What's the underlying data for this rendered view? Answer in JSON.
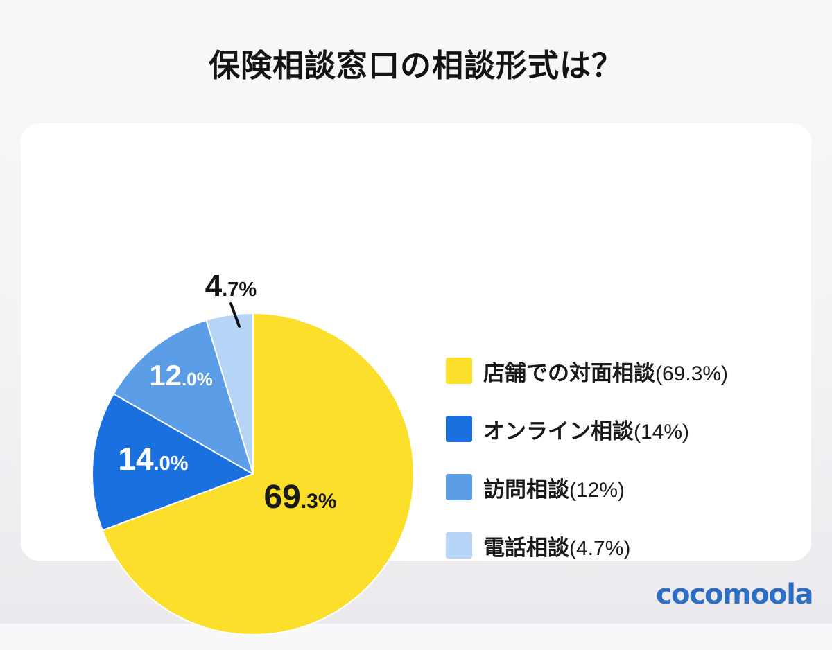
{
  "title": "保険相談窓口の相談形式は？",
  "logo_text": "cocomoola",
  "colors": {
    "background_top": "#f8f7f9",
    "background_bottom": "#eceaee",
    "card": "#ffffff",
    "title_text": "#141414",
    "logo_blue": "#2d6fc4",
    "slice_separator": "#ffffff"
  },
  "chart_data": {
    "type": "pie",
    "title": "保険相談窓口の相談形式は？",
    "start_angle_deg": 0,
    "direction": "clockwise",
    "legend_position": "right",
    "slices": [
      {
        "label": "店舗での対面相談",
        "value": 69.3,
        "color": "#fbdf2b",
        "pct_display": "(69.3%)",
        "display_big": "69",
        "display_small": ".3%",
        "label_color": "#1a1a1a"
      },
      {
        "label": "オンライン相談",
        "value": 14,
        "color": "#1b70e0",
        "pct_display": "(14%)",
        "display_big": "14",
        "display_small": ".0%",
        "label_color": "#ffffff"
      },
      {
        "label": "訪問相談",
        "value": 12,
        "color": "#5c9de8",
        "pct_display": "(12%)",
        "display_big": "12",
        "display_small": ".0%",
        "label_color": "#ffffff"
      },
      {
        "label": "電話相談",
        "value": 4.7,
        "color": "#b6d5f6",
        "pct_display": "(4.7%)",
        "display_big": "4",
        "display_small": ".7%",
        "label_color": "#141414"
      }
    ]
  }
}
